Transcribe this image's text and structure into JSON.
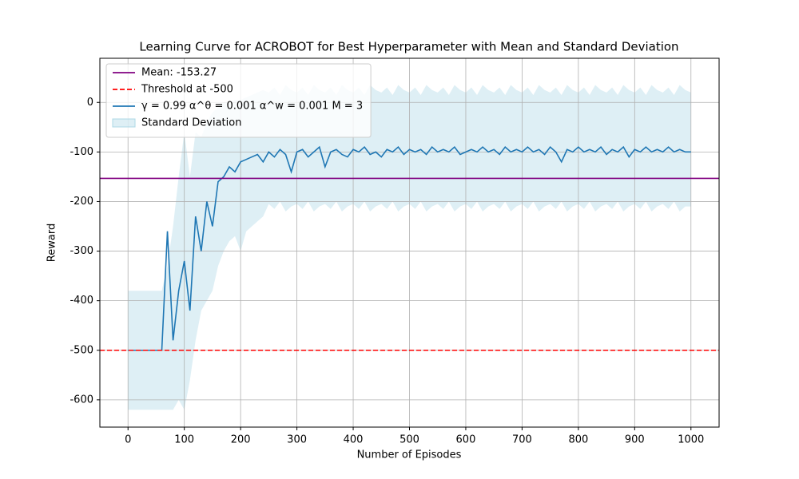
{
  "chart_data": {
    "type": "line",
    "title": "Learning Curve for ACROBOT for Best Hyperparameter with Mean and Standard Deviation",
    "x_label": "Number of Episodes",
    "y_label": "Reward",
    "xlim": [
      -50,
      1050
    ],
    "ylim": [
      -655,
      89
    ],
    "xticks": [
      0,
      100,
      200,
      300,
      400,
      500,
      600,
      700,
      800,
      900,
      1000
    ],
    "yticks": [
      -600,
      -500,
      -400,
      -300,
      -200,
      -100,
      0
    ],
    "grid": true,
    "legend": "upper left",
    "x": [
      0,
      10,
      20,
      30,
      40,
      50,
      60,
      70,
      80,
      90,
      100,
      110,
      120,
      130,
      140,
      150,
      160,
      170,
      180,
      190,
      200,
      210,
      220,
      230,
      240,
      250,
      260,
      270,
      280,
      290,
      300,
      310,
      320,
      330,
      340,
      350,
      360,
      370,
      380,
      390,
      400,
      410,
      420,
      430,
      440,
      450,
      460,
      470,
      480,
      490,
      500,
      510,
      520,
      530,
      540,
      550,
      560,
      570,
      580,
      590,
      600,
      610,
      620,
      630,
      640,
      650,
      660,
      670,
      680,
      690,
      700,
      710,
      720,
      730,
      740,
      750,
      760,
      770,
      780,
      790,
      800,
      810,
      820,
      830,
      840,
      850,
      860,
      870,
      880,
      890,
      900,
      910,
      920,
      930,
      940,
      950,
      960,
      970,
      980,
      990,
      1000
    ],
    "hlines": [
      {
        "name": "Mean: -153.27",
        "value": -153.27,
        "color": "#800080",
        "dash": false
      },
      {
        "name": "Threshold at -500",
        "value": -500,
        "color": "#ff0000",
        "dash": true
      }
    ],
    "series": [
      {
        "name": "γ = 0.99 α^θ = 0.001 α^w = 0.001 M = 3",
        "color": "#1f77b4",
        "values": [
          -500,
          -500,
          -500,
          -500,
          -500,
          -500,
          -500,
          -260,
          -480,
          -380,
          -320,
          -420,
          -230,
          -300,
          -200,
          -250,
          -160,
          -150,
          -130,
          -140,
          -120,
          -115,
          -110,
          -105,
          -120,
          -100,
          -110,
          -95,
          -105,
          -140,
          -100,
          -95,
          -110,
          -100,
          -90,
          -130,
          -100,
          -95,
          -105,
          -110,
          -95,
          -100,
          -90,
          -105,
          -100,
          -110,
          -95,
          -100,
          -90,
          -105,
          -95,
          -100,
          -95,
          -105,
          -90,
          -100,
          -95,
          -100,
          -90,
          -105,
          -100,
          -95,
          -100,
          -90,
          -100,
          -95,
          -105,
          -90,
          -100,
          -95,
          -100,
          -90,
          -100,
          -95,
          -105,
          -90,
          -100,
          -120,
          -95,
          -100,
          -90,
          -100,
          -95,
          -100,
          -90,
          -105,
          -95,
          -100,
          -90,
          -110,
          -95,
          -100,
          -90,
          -100,
          -95,
          -100,
          -90,
          -100,
          -95,
          -100,
          -100
        ]
      }
    ],
    "band": {
      "name": "Standard Deviation",
      "color": "#add8e6",
      "upper": [
        -380,
        -380,
        -380,
        -380,
        -380,
        -380,
        -380,
        -330,
        -250,
        -150,
        -60,
        -150,
        -60,
        -70,
        -40,
        -20,
        -10,
        0,
        0,
        5,
        5,
        10,
        15,
        20,
        25,
        20,
        30,
        15,
        35,
        25,
        20,
        30,
        15,
        35,
        25,
        20,
        30,
        15,
        35,
        25,
        20,
        30,
        15,
        35,
        25,
        20,
        30,
        15,
        35,
        25,
        20,
        30,
        15,
        35,
        25,
        20,
        30,
        15,
        35,
        25,
        20,
        30,
        15,
        35,
        25,
        20,
        30,
        15,
        35,
        25,
        20,
        30,
        15,
        35,
        25,
        20,
        30,
        15,
        35,
        25,
        20,
        30,
        15,
        35,
        25,
        20,
        30,
        15,
        35,
        25,
        20,
        30,
        15,
        35,
        25,
        20,
        30,
        15,
        35,
        25,
        20
      ],
      "lower": [
        -620,
        -620,
        -620,
        -620,
        -620,
        -620,
        -620,
        -620,
        -620,
        -600,
        -620,
        -560,
        -480,
        -420,
        -400,
        -380,
        -330,
        -300,
        -280,
        -270,
        -300,
        -260,
        -250,
        -240,
        -230,
        -205,
        -215,
        -200,
        -220,
        -210,
        -205,
        -215,
        -200,
        -220,
        -210,
        -205,
        -215,
        -200,
        -220,
        -210,
        -205,
        -215,
        -200,
        -220,
        -210,
        -205,
        -215,
        -200,
        -220,
        -210,
        -205,
        -215,
        -200,
        -220,
        -210,
        -205,
        -215,
        -200,
        -220,
        -210,
        -205,
        -215,
        -200,
        -220,
        -210,
        -205,
        -215,
        -200,
        -220,
        -210,
        -205,
        -215,
        -200,
        -220,
        -210,
        -205,
        -215,
        -200,
        -220,
        -210,
        -205,
        -215,
        -200,
        -220,
        -210,
        -205,
        -215,
        -200,
        -220,
        -210,
        -205,
        -215,
        -200,
        -220,
        -210,
        -205,
        -215,
        -200,
        -220,
        -210,
        -210
      ]
    }
  }
}
